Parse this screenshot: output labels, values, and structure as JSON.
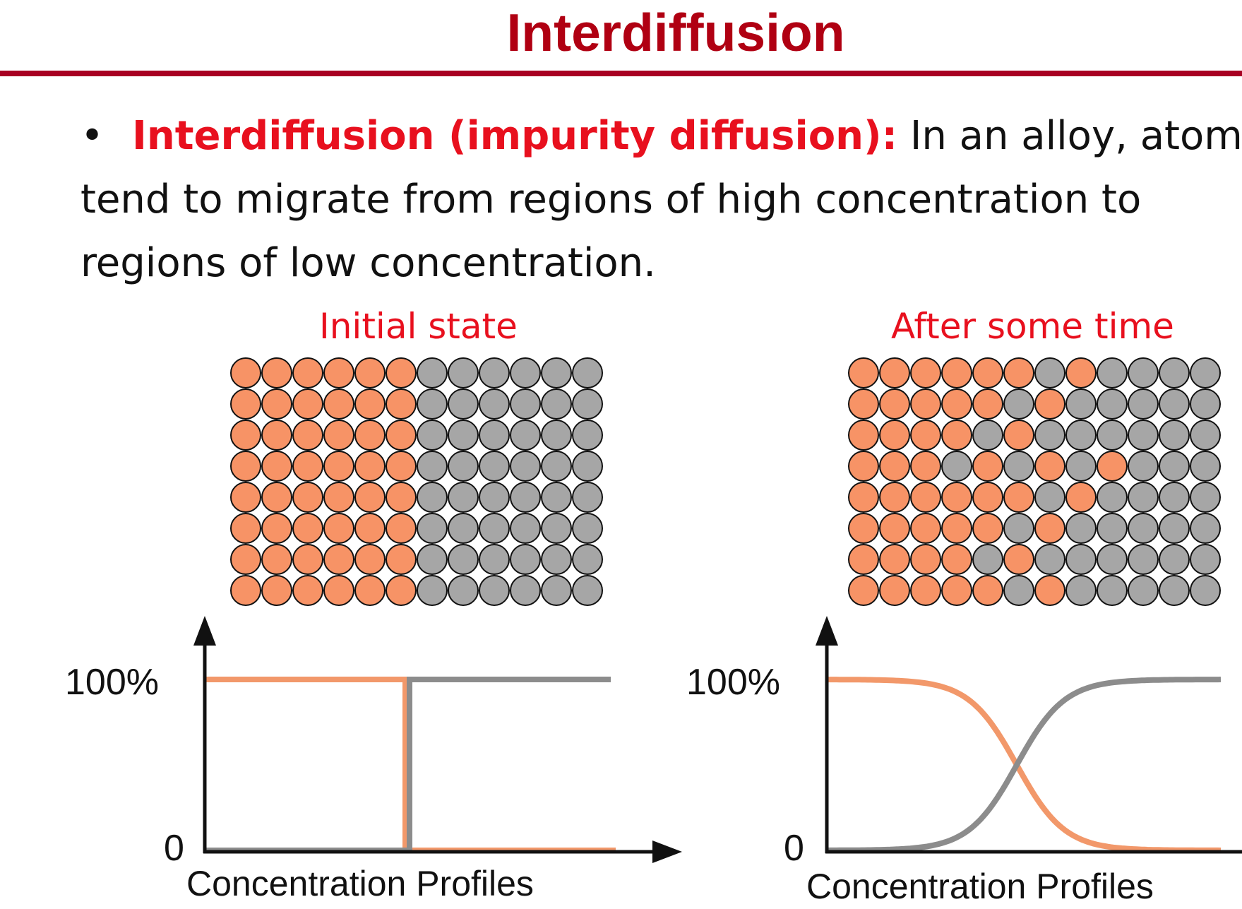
{
  "slide": {
    "title": "Interdiffusion",
    "bullet": {
      "symbol": "•",
      "term": "Interdiffusion (impurity diffusion):",
      "line1_text": " In an alloy, atoms",
      "line2": "tend to migrate from regions of high concentration to",
      "line3": "regions of low concentration."
    }
  },
  "colors": {
    "title": "#b00012",
    "rule": "#a80022",
    "highlight": "#e8101e",
    "atom_a": "#f79366",
    "atom_b": "#a6a6a6",
    "curve_a": "#f2986a",
    "curve_b": "#8c8c8c"
  },
  "panels": [
    {
      "caption": "Initial state",
      "atom_rows": [
        "AAAAAABBBBBB",
        "AAAAAABBBBBB",
        "AAAAAABBBBBB",
        "AAAAAABBBBBB",
        "AAAAAABBBBBB",
        "AAAAAABBBBBB",
        "AAAAAABBBBBB",
        "AAAAAABBBBBB"
      ],
      "profile": {
        "y_top_label": "100%",
        "y_bottom_label": "0",
        "caption": "Concentration Profiles",
        "shape": "step"
      }
    },
    {
      "caption": "After some time",
      "atom_rows": [
        "AAAAAABABBBB",
        "AAAAABABBBBB",
        "AAAABABBBBBB",
        "AAABABABABBB",
        "AAAAAABABBBB",
        "AAAAABABBBBB",
        "AAAABABBBBBB",
        "AAAAABABBBBB"
      ],
      "profile": {
        "y_top_label": "100%",
        "y_bottom_label": "0",
        "caption": "Concentration Profiles",
        "shape": "sigmoid"
      }
    }
  ]
}
